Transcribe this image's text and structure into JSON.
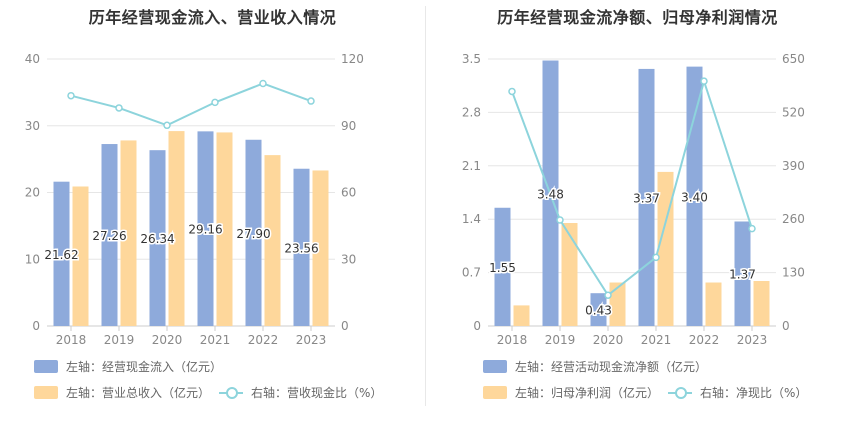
{
  "charts": [
    {
      "title": "历年经营现金流入、营业收入情况",
      "legend": [
        {
          "label": "左轴：经营现金流入（亿元）",
          "kind": "bar",
          "color": "#8eaadb"
        },
        {
          "label": "左轴：营业总收入（亿元）",
          "kind": "bar",
          "color": "#fed79b"
        },
        {
          "label": "右轴：营收现金比（%）",
          "kind": "line",
          "color": "#8dd4dc"
        }
      ]
    },
    {
      "title": "历年经营现金流净额、归母净利润情况",
      "legend": [
        {
          "label": "左轴：经营活动现金流净额（亿元）",
          "kind": "bar",
          "color": "#8eaadb"
        },
        {
          "label": "左轴：归母净利润（亿元）",
          "kind": "bar",
          "color": "#fed79b"
        },
        {
          "label": "右轴：净现比（%）",
          "kind": "line",
          "color": "#8dd4dc"
        }
      ]
    }
  ],
  "chart_data": [
    {
      "type": "bar",
      "title": "历年经营现金流入、营业收入情况",
      "categories": [
        "2018",
        "2019",
        "2020",
        "2021",
        "2022",
        "2023"
      ],
      "series": [
        {
          "name": "左轴：经营现金流入（亿元）",
          "axis": "left",
          "kind": "bar",
          "color": "#8eaadb",
          "values": [
            21.62,
            27.26,
            26.34,
            29.16,
            27.9,
            23.56
          ],
          "labels": [
            "21.62",
            "27.26",
            "26.34",
            "29.16",
            "27.90",
            "23.56"
          ]
        },
        {
          "name": "左轴：营业总收入（亿元）",
          "axis": "left",
          "kind": "bar",
          "color": "#fed79b",
          "values": [
            20.9,
            27.8,
            29.2,
            29.0,
            25.6,
            23.3
          ]
        },
        {
          "name": "右轴：营收现金比（%）",
          "axis": "right",
          "kind": "line",
          "color": "#8dd4dc",
          "values": [
            103.5,
            98.0,
            90.2,
            100.5,
            109.0,
            101.1
          ]
        }
      ],
      "y_left": {
        "min": 0,
        "max": 40,
        "ticks": [
          "0",
          "10",
          "20",
          "30",
          "40"
        ]
      },
      "y_right": {
        "min": 0,
        "max": 120,
        "ticks": [
          "0",
          "30",
          "60",
          "90",
          "120"
        ]
      },
      "grid": true,
      "legend_position": "bottom"
    },
    {
      "type": "bar",
      "title": "历年经营现金流净额、归母净利润情况",
      "categories": [
        "2018",
        "2019",
        "2020",
        "2021",
        "2022",
        "2023"
      ],
      "series": [
        {
          "name": "左轴：经营活动现金流净额（亿元）",
          "axis": "left",
          "kind": "bar",
          "color": "#8eaadb",
          "values": [
            1.55,
            3.48,
            0.43,
            3.37,
            3.4,
            1.37
          ],
          "labels": [
            "1.55",
            "3.48",
            "0.43",
            "3.37",
            "3.40",
            "1.37"
          ]
        },
        {
          "name": "左轴：归母净利润（亿元）",
          "axis": "left",
          "kind": "bar",
          "color": "#fed79b",
          "values": [
            0.27,
            1.35,
            0.57,
            2.02,
            0.57,
            0.59
          ]
        },
        {
          "name": "右轴：净现比（%）",
          "axis": "right",
          "kind": "line",
          "color": "#8dd4dc",
          "values": [
            571,
            258,
            75,
            167,
            596,
            237
          ]
        }
      ],
      "y_left": {
        "min": 0,
        "max": 3.5,
        "ticks": [
          "0",
          "0.7",
          "1.4",
          "2.1",
          "2.8",
          "3.5"
        ]
      },
      "y_right": {
        "min": 0,
        "max": 650,
        "ticks": [
          "0",
          "130",
          "260",
          "390",
          "520",
          "650"
        ]
      },
      "grid": true,
      "legend_position": "bottom"
    }
  ]
}
